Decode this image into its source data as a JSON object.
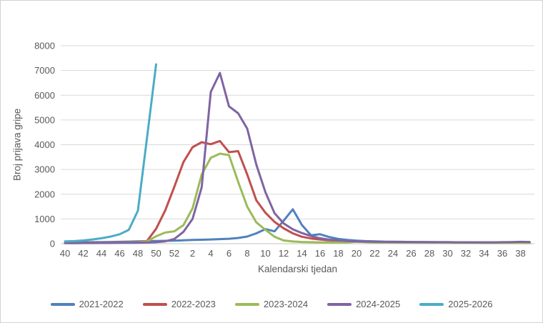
{
  "chart_data": {
    "type": "line",
    "title": "",
    "xlabel": "Kalendarski tjedan",
    "ylabel": "Broj prijava gripe",
    "ylim": [
      0,
      8000
    ],
    "ytick_step": 1000,
    "grid": "horizontal-only",
    "legend_position": "bottom",
    "x_tick_every": 2,
    "categories": [
      40,
      41,
      42,
      43,
      44,
      45,
      46,
      47,
      48,
      49,
      50,
      51,
      52,
      1,
      2,
      3,
      4,
      5,
      6,
      7,
      8,
      9,
      10,
      11,
      12,
      13,
      14,
      15,
      16,
      17,
      18,
      19,
      20,
      21,
      22,
      23,
      24,
      25,
      26,
      27,
      28,
      29,
      30,
      31,
      32,
      33,
      34,
      35,
      36,
      37,
      38,
      39
    ],
    "series": [
      {
        "name": "2021-2022",
        "color": "#4F81BD",
        "values": [
          50,
          55,
          60,
          60,
          65,
          70,
          75,
          85,
          95,
          100,
          110,
          115,
          125,
          135,
          150,
          160,
          170,
          185,
          200,
          230,
          290,
          420,
          590,
          500,
          930,
          1390,
          760,
          340,
          380,
          270,
          190,
          150,
          120,
          105,
          95,
          85,
          80,
          75,
          70,
          65,
          65,
          60,
          60,
          55,
          55,
          50,
          50,
          50,
          45,
          45,
          45,
          45
        ]
      },
      {
        "name": "2022-2023",
        "color": "#C0504D",
        "values": [
          30,
          30,
          35,
          35,
          40,
          45,
          50,
          55,
          65,
          110,
          600,
          1350,
          2300,
          3300,
          3900,
          4100,
          4020,
          4150,
          3700,
          3740,
          2800,
          1750,
          1250,
          880,
          620,
          420,
          280,
          210,
          170,
          140,
          110,
          95,
          85,
          75,
          70,
          65,
          60,
          55,
          55,
          50,
          50,
          45,
          45,
          40,
          40,
          40,
          35,
          35,
          35,
          30,
          30,
          30
        ]
      },
      {
        "name": "2023-2024",
        "color": "#9BBB59",
        "values": [
          25,
          25,
          30,
          30,
          35,
          35,
          40,
          45,
          55,
          90,
          300,
          450,
          500,
          750,
          1430,
          2800,
          3470,
          3640,
          3580,
          2500,
          1500,
          860,
          560,
          280,
          130,
          90,
          70,
          60,
          55,
          50,
          45,
          50,
          80,
          65,
          50,
          45,
          45,
          40,
          40,
          35,
          35,
          35,
          30,
          30,
          30,
          30,
          25,
          25,
          25,
          25,
          25,
          25
        ]
      },
      {
        "name": "2024-2025",
        "color": "#8064A2",
        "values": [
          20,
          20,
          25,
          25,
          30,
          30,
          35,
          35,
          40,
          45,
          60,
          95,
          190,
          480,
          1000,
          2280,
          6130,
          6900,
          5550,
          5270,
          4650,
          3190,
          2080,
          1230,
          820,
          580,
          430,
          310,
          220,
          165,
          130,
          110,
          95,
          85,
          80,
          75,
          70,
          70,
          65,
          65,
          60,
          60,
          60,
          55,
          55,
          55,
          55,
          55,
          60,
          65,
          75,
          70
        ]
      },
      {
        "name": "2025-2026",
        "color": "#4BACC6",
        "values": [
          95,
          105,
          130,
          170,
          220,
          285,
          380,
          560,
          1330,
          4290,
          7250
        ]
      }
    ]
  }
}
